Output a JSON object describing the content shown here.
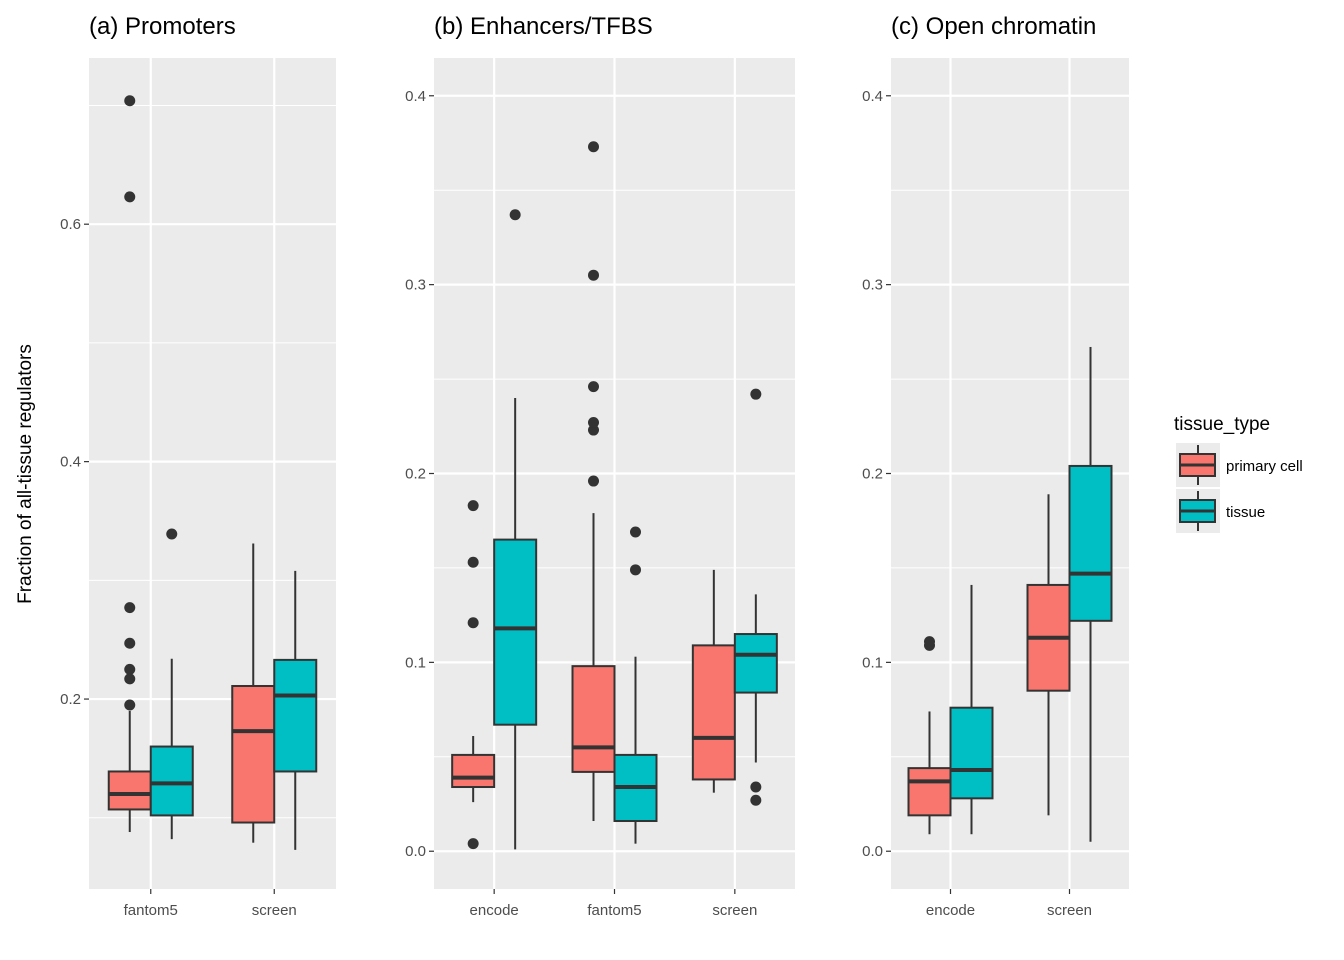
{
  "chart_data": {
    "type": "boxplot",
    "ylabel": "Fraction of all-tissue regulators",
    "legend": {
      "title": "tissue_type",
      "placement": "right",
      "entries": [
        {
          "label": "primary cell",
          "color": "#f8766d"
        },
        {
          "label": "tissue",
          "color": "#00bfc4"
        }
      ]
    },
    "colors": {
      "panel_bg": "#ebebeb",
      "grid": "#ffffff",
      "box_line": "#333333",
      "tick": "#4d4d4d"
    },
    "panels": [
      {
        "title": "(a) Promoters",
        "categories": [
          "fantom5",
          "screen"
        ],
        "ylim": [
          0.04,
          0.74
        ],
        "yticks": [
          0.2,
          0.4,
          0.6
        ],
        "ytick_labels": [
          "0.2",
          "0.4",
          "0.6"
        ],
        "boxes": [
          {
            "category": "fantom5",
            "series": "primary cell",
            "whisker_low": 0.088,
            "q1": 0.107,
            "median": 0.12,
            "q3": 0.139,
            "whisker_high": 0.19,
            "outliers": [
              0.195,
              0.217,
              0.225,
              0.247,
              0.277,
              0.623,
              0.704
            ]
          },
          {
            "category": "fantom5",
            "series": "tissue",
            "whisker_low": 0.082,
            "q1": 0.102,
            "median": 0.129,
            "q3": 0.16,
            "whisker_high": 0.234,
            "outliers": [
              0.339
            ]
          },
          {
            "category": "screen",
            "series": "primary cell",
            "whisker_low": 0.079,
            "q1": 0.096,
            "median": 0.173,
            "q3": 0.211,
            "whisker_high": 0.331,
            "outliers": []
          },
          {
            "category": "screen",
            "series": "tissue",
            "whisker_low": 0.073,
            "q1": 0.139,
            "median": 0.203,
            "q3": 0.233,
            "whisker_high": 0.308,
            "outliers": []
          }
        ]
      },
      {
        "title": "(b) Enhancers/TFBS",
        "categories": [
          "encode",
          "fantom5",
          "screen"
        ],
        "ylim": [
          -0.02,
          0.42
        ],
        "yticks": [
          0.0,
          0.1,
          0.2,
          0.3,
          0.4
        ],
        "ytick_labels": [
          "0.0",
          "0.1",
          "0.2",
          "0.3",
          "0.4"
        ],
        "boxes": [
          {
            "category": "encode",
            "series": "primary cell",
            "whisker_low": 0.026,
            "q1": 0.034,
            "median": 0.039,
            "q3": 0.051,
            "whisker_high": 0.061,
            "outliers": [
              0.004,
              0.121,
              0.153,
              0.183
            ]
          },
          {
            "category": "encode",
            "series": "tissue",
            "whisker_low": 0.001,
            "q1": 0.067,
            "median": 0.118,
            "q3": 0.165,
            "whisker_high": 0.24,
            "outliers": [
              0.337
            ]
          },
          {
            "category": "fantom5",
            "series": "primary cell",
            "whisker_low": 0.016,
            "q1": 0.042,
            "median": 0.055,
            "q3": 0.098,
            "whisker_high": 0.179,
            "outliers": [
              0.196,
              0.223,
              0.227,
              0.246,
              0.305,
              0.373
            ]
          },
          {
            "category": "fantom5",
            "series": "tissue",
            "whisker_low": 0.004,
            "q1": 0.016,
            "median": 0.034,
            "q3": 0.051,
            "whisker_high": 0.103,
            "outliers": [
              0.149,
              0.169
            ]
          },
          {
            "category": "screen",
            "series": "primary cell",
            "whisker_low": 0.031,
            "q1": 0.038,
            "median": 0.06,
            "q3": 0.109,
            "whisker_high": 0.149,
            "outliers": []
          },
          {
            "category": "screen",
            "series": "tissue",
            "whisker_low": 0.047,
            "q1": 0.084,
            "median": 0.104,
            "q3": 0.115,
            "whisker_high": 0.136,
            "outliers": [
              0.027,
              0.034,
              0.242
            ]
          }
        ]
      },
      {
        "title": "(c) Open chromatin",
        "categories": [
          "encode",
          "screen"
        ],
        "ylim": [
          -0.02,
          0.42
        ],
        "yticks": [
          0.0,
          0.1,
          0.2,
          0.3,
          0.4
        ],
        "ytick_labels": [
          "0.0",
          "0.1",
          "0.2",
          "0.3",
          "0.4"
        ],
        "boxes": [
          {
            "category": "encode",
            "series": "primary cell",
            "whisker_low": 0.009,
            "q1": 0.019,
            "median": 0.037,
            "q3": 0.044,
            "whisker_high": 0.074,
            "outliers": [
              0.109,
              0.111
            ]
          },
          {
            "category": "encode",
            "series": "tissue",
            "whisker_low": 0.009,
            "q1": 0.028,
            "median": 0.043,
            "q3": 0.076,
            "whisker_high": 0.141,
            "outliers": []
          },
          {
            "category": "screen",
            "series": "primary cell",
            "whisker_low": 0.019,
            "q1": 0.085,
            "median": 0.113,
            "q3": 0.141,
            "whisker_high": 0.189,
            "outliers": []
          },
          {
            "category": "screen",
            "series": "tissue",
            "whisker_low": 0.005,
            "q1": 0.122,
            "median": 0.147,
            "q3": 0.204,
            "whisker_high": 0.267,
            "outliers": []
          }
        ]
      }
    ]
  }
}
